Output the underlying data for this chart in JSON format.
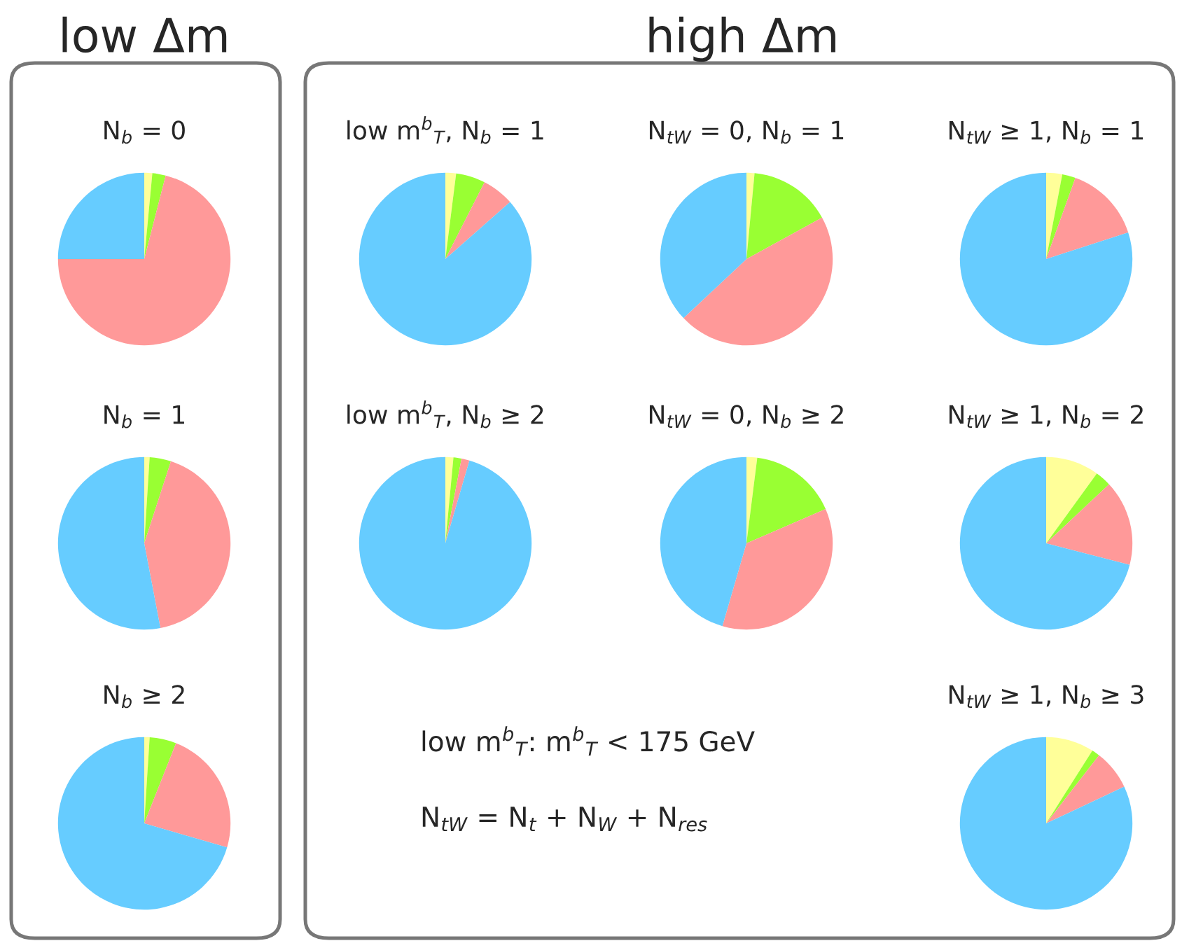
{
  "chart_data": [
    {
      "type": "pie",
      "title": "N$_{b}$ = 0",
      "categories": [
        null,
        null,
        null,
        null
      ],
      "values": [
        1.5,
        2.5,
        71,
        25
      ],
      "colors": [
        "#ffff99",
        "#99ff33",
        "#ff9999",
        "#66ccff"
      ]
    },
    {
      "type": "pie",
      "title": "low m$^{b}$$_{T}$, N$_{b}$ = 1",
      "categories": [
        null,
        null,
        null,
        null
      ],
      "values": [
        2,
        5.5,
        6,
        86.5
      ],
      "colors": [
        "#ffff99",
        "#99ff33",
        "#ff9999",
        "#66ccff"
      ]
    },
    {
      "type": "pie",
      "title": "N$_{tW}$ = 0, N$_{b}$ = 1",
      "categories": [
        null,
        null,
        null,
        null
      ],
      "values": [
        1.5,
        15.5,
        46,
        37
      ],
      "colors": [
        "#ffff99",
        "#99ff33",
        "#ff9999",
        "#66ccff"
      ]
    },
    {
      "type": "pie",
      "title": "N$_{tW}$ ≥ 1, N$_{b}$ = 1",
      "categories": [
        null,
        null,
        null,
        null
      ],
      "values": [
        3,
        2.5,
        14.5,
        80
      ],
      "colors": [
        "#ffff99",
        "#99ff33",
        "#ff9999",
        "#66ccff"
      ]
    },
    {
      "type": "pie",
      "title": "N$_{b}$ = 1",
      "categories": [
        null,
        null,
        null,
        null
      ],
      "values": [
        1,
        4,
        42,
        53
      ],
      "colors": [
        "#ffff99",
        "#99ff33",
        "#ff9999",
        "#66ccff"
      ]
    },
    {
      "type": "pie",
      "title": "low m$^{b}$$_{T}$, N$_{b}$ ≥ 2",
      "categories": [
        null,
        null,
        null,
        null
      ],
      "values": [
        1.5,
        1.5,
        1.5,
        95.5
      ],
      "colors": [
        "#ffff99",
        "#99ff33",
        "#ff9999",
        "#66ccff"
      ]
    },
    {
      "type": "pie",
      "title": "N$_{tW}$ = 0, N$_{b}$ ≥ 2",
      "categories": [
        null,
        null,
        null,
        null
      ],
      "values": [
        2,
        16.5,
        36,
        45.5
      ],
      "colors": [
        "#ffff99",
        "#99ff33",
        "#ff9999",
        "#66ccff"
      ]
    },
    {
      "type": "pie",
      "title": "N$_{tW}$ ≥ 1, N$_{b}$ = 2",
      "categories": [
        null,
        null,
        null,
        null
      ],
      "values": [
        10,
        3,
        16,
        71
      ],
      "colors": [
        "#ffff99",
        "#99ff33",
        "#ff9999",
        "#66ccff"
      ]
    },
    {
      "type": "pie",
      "title": "N$_{b}$ ≥ 2",
      "categories": [
        null,
        null,
        null,
        null
      ],
      "values": [
        1,
        5,
        23.5,
        70.5
      ],
      "colors": [
        "#ffff99",
        "#99ff33",
        "#ff9999",
        "#66ccff"
      ]
    },
    {
      "type": "pie",
      "title": "N$_{tW}$ ≥ 1, N$_{b}$ ≥ 3",
      "categories": [
        null,
        null,
        null,
        null
      ],
      "values": [
        9,
        1.5,
        7.5,
        82
      ],
      "colors": [
        "#ffff99",
        "#99ff33",
        "#ff9999",
        "#66ccff"
      ]
    },
    {
      "type": "other",
      "annotations": [
        "low Δm",
        "high Δm",
        "low m$^{b}$$_{T}$: m$^{b}$$_{T}$ < 175 GeV",
        "N$_{tW}$ = N$_{t}$ + N$_{W}$ + N$_{res}$"
      ]
    }
  ]
}
